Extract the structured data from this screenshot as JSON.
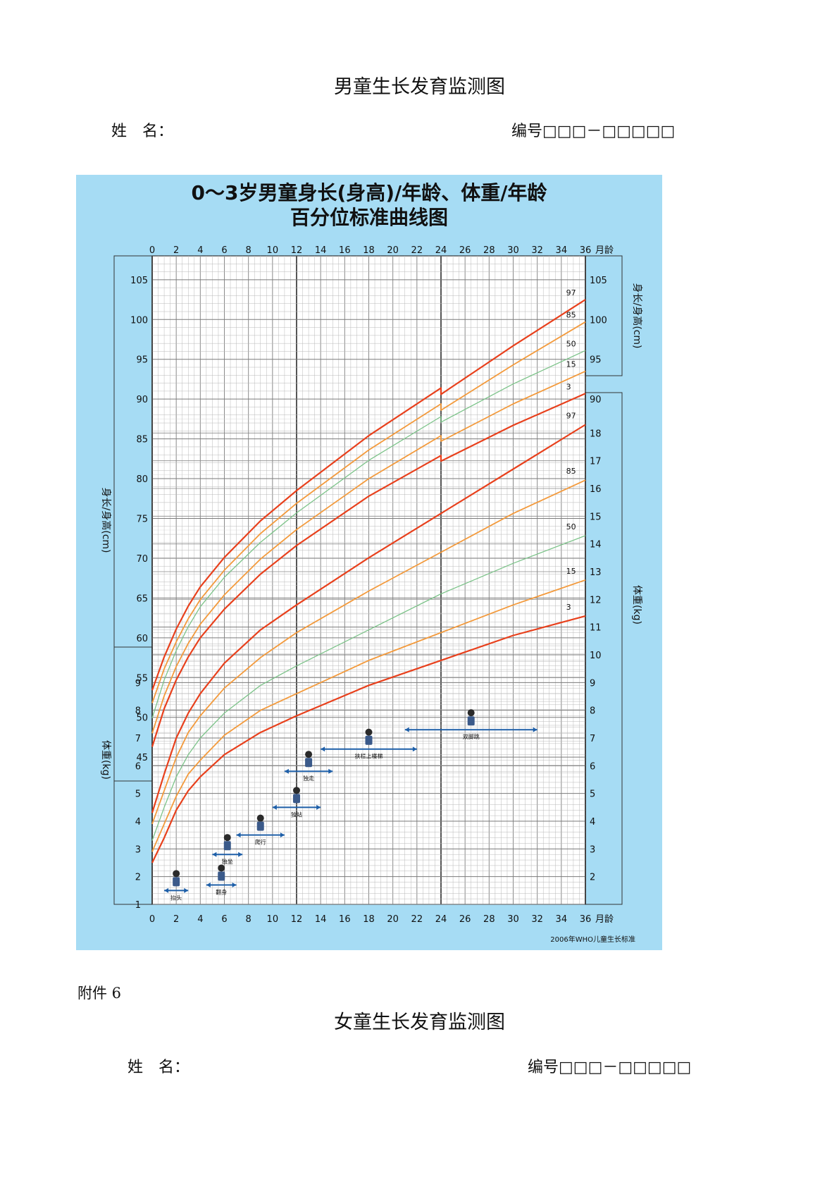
{
  "page": {
    "boy_title": "男童生长发育监测图",
    "boy_name_label": "姓　名：",
    "boy_number_label": "编号□□□－□□□□□",
    "attachment_label": "附件 6",
    "girl_title": "女童生长发育监测图",
    "girl_name_label": "姓　名：",
    "girl_number_label": "编号□□□－□□□□□"
  },
  "colors": {
    "panel_bg": "#a6dcf4",
    "grid_minor": "#b9b9b9",
    "grid_major": "#555555",
    "p97_p3": "#e8401c",
    "p85_p15": "#f39a3c",
    "p50": "#7cc389",
    "milestone_arrow": "#1e5fa8"
  },
  "chart_data": {
    "type": "line",
    "title": "0～3岁男童身长(身高)/年龄、体重/年龄",
    "subtitle": "百分位标准曲线图",
    "source_note": "2006年WHO儿童生长标准",
    "x": {
      "label": "月龄",
      "unit": "months",
      "range": [
        0,
        36
      ],
      "tick_labels": [
        "0",
        "2",
        "4",
        "6",
        "8",
        "10",
        "12",
        "14",
        "16",
        "18",
        "20",
        "22",
        "24",
        "26",
        "28",
        "30",
        "32",
        "34",
        "36"
      ]
    },
    "length_axis": {
      "label": "身长/身高(cm)",
      "range": [
        42,
        108
      ],
      "tick_labels_left": [
        "105",
        "100",
        "95",
        "90",
        "85",
        "80",
        "75",
        "70",
        "65",
        "60",
        "55",
        "50",
        "45"
      ],
      "tick_labels_right": [
        "105",
        "100",
        "95",
        "90"
      ]
    },
    "weight_axis": {
      "label": "体重(kg)",
      "range": [
        1,
        19
      ],
      "tick_labels_left": [
        "9",
        "8",
        "7",
        "6",
        "5",
        "4",
        "3",
        "2",
        "1"
      ],
      "tick_labels_right": [
        "18",
        "17",
        "16",
        "15",
        "14",
        "13",
        "12",
        "11",
        "10",
        "9",
        "8",
        "7",
        "6",
        "5",
        "4",
        "3",
        "2"
      ]
    },
    "percentile_labels": [
      "97",
      "85",
      "50",
      "15",
      "3"
    ],
    "length_series": [
      {
        "name": "97",
        "x": [
          0,
          1,
          2,
          3,
          4,
          6,
          9,
          12,
          18,
          24,
          24,
          30,
          36
        ],
        "y": [
          53.4,
          57.6,
          61.1,
          64,
          66.4,
          70.1,
          74.7,
          78.5,
          85.4,
          91.4,
          90.6,
          96.7,
          102.5
        ]
      },
      {
        "name": "85",
        "x": [
          0,
          1,
          2,
          3,
          4,
          6,
          9,
          12,
          18,
          24,
          24,
          30,
          36
        ],
        "y": [
          51.8,
          56.1,
          59.5,
          62.4,
          64.8,
          68.5,
          73.1,
          76.9,
          83.6,
          89.4,
          88.6,
          94.3,
          99.7
        ]
      },
      {
        "name": "50",
        "x": [
          0,
          1,
          2,
          3,
          4,
          6,
          9,
          12,
          18,
          24,
          24,
          30,
          36
        ],
        "y": [
          49.9,
          54.7,
          58.4,
          61.4,
          63.9,
          67.6,
          72,
          75.7,
          82.3,
          87.8,
          87.1,
          91.9,
          96.1
        ]
      },
      {
        "name": "15",
        "x": [
          0,
          1,
          2,
          3,
          4,
          6,
          9,
          12,
          18,
          24,
          24,
          30,
          36
        ],
        "y": [
          48,
          52.7,
          56.4,
          59.3,
          61.7,
          65.4,
          69.9,
          73.6,
          80,
          85.4,
          84.7,
          89.4,
          93.5
        ]
      },
      {
        "name": "3",
        "x": [
          0,
          1,
          2,
          3,
          4,
          6,
          9,
          12,
          18,
          24,
          24,
          30,
          36
        ],
        "y": [
          46.3,
          51.1,
          54.7,
          57.6,
          60,
          63.6,
          68,
          71.6,
          77.8,
          82.9,
          82.2,
          86.7,
          90.7
        ]
      }
    ],
    "weight_series": [
      {
        "name": "97",
        "x": [
          0,
          1,
          2,
          3,
          4,
          6,
          9,
          12,
          18,
          24,
          30,
          36
        ],
        "y": [
          4.3,
          5.7,
          7,
          7.9,
          8.6,
          9.7,
          10.9,
          11.8,
          13.5,
          15.1,
          16.7,
          18.3
        ]
      },
      {
        "name": "85",
        "x": [
          0,
          1,
          2,
          3,
          4,
          6,
          9,
          12,
          18,
          24,
          30,
          36
        ],
        "y": [
          3.9,
          5.1,
          6.3,
          7.2,
          7.8,
          8.8,
          9.9,
          10.8,
          12.3,
          13.7,
          15.1,
          16.3
        ]
      },
      {
        "name": "50",
        "x": [
          0,
          1,
          2,
          3,
          4,
          6,
          9,
          12,
          18,
          24,
          30,
          36
        ],
        "y": [
          3.3,
          4.5,
          5.6,
          6.4,
          7,
          7.9,
          8.9,
          9.6,
          10.9,
          12.2,
          13.3,
          14.3
        ]
      },
      {
        "name": "15",
        "x": [
          0,
          1,
          2,
          3,
          4,
          6,
          9,
          12,
          18,
          24,
          30,
          36
        ],
        "y": [
          2.9,
          3.9,
          4.9,
          5.7,
          6.2,
          7.1,
          8,
          8.6,
          9.8,
          10.8,
          11.8,
          12.7
        ]
      },
      {
        "name": "3",
        "x": [
          0,
          1,
          2,
          3,
          4,
          6,
          9,
          12,
          18,
          24,
          30,
          36
        ],
        "y": [
          2.5,
          3.4,
          4.4,
          5.1,
          5.6,
          6.4,
          7.2,
          7.8,
          8.9,
          9.8,
          10.7,
          11.4
        ]
      }
    ],
    "milestones": [
      {
        "label": "抬头",
        "start_month": 1,
        "end_month": 3,
        "weight_level": 1.5
      },
      {
        "label": "翻身",
        "start_month": 4.5,
        "end_month": 7,
        "weight_level": 1.7
      },
      {
        "label": "独坐",
        "start_month": 5,
        "end_month": 7.5,
        "weight_level": 2.8
      },
      {
        "label": "爬行",
        "start_month": 7,
        "end_month": 11,
        "weight_level": 3.5
      },
      {
        "label": "独站",
        "start_month": 10,
        "end_month": 14,
        "weight_level": 4.5
      },
      {
        "label": "独走",
        "start_month": 11,
        "end_month": 15,
        "weight_level": 5.8
      },
      {
        "label": "扶栏上楼梯",
        "start_month": 14,
        "end_month": 22,
        "weight_level": 6.6
      },
      {
        "label": "双脚跳",
        "start_month": 21,
        "end_month": 32,
        "weight_level": 7.3
      }
    ]
  }
}
